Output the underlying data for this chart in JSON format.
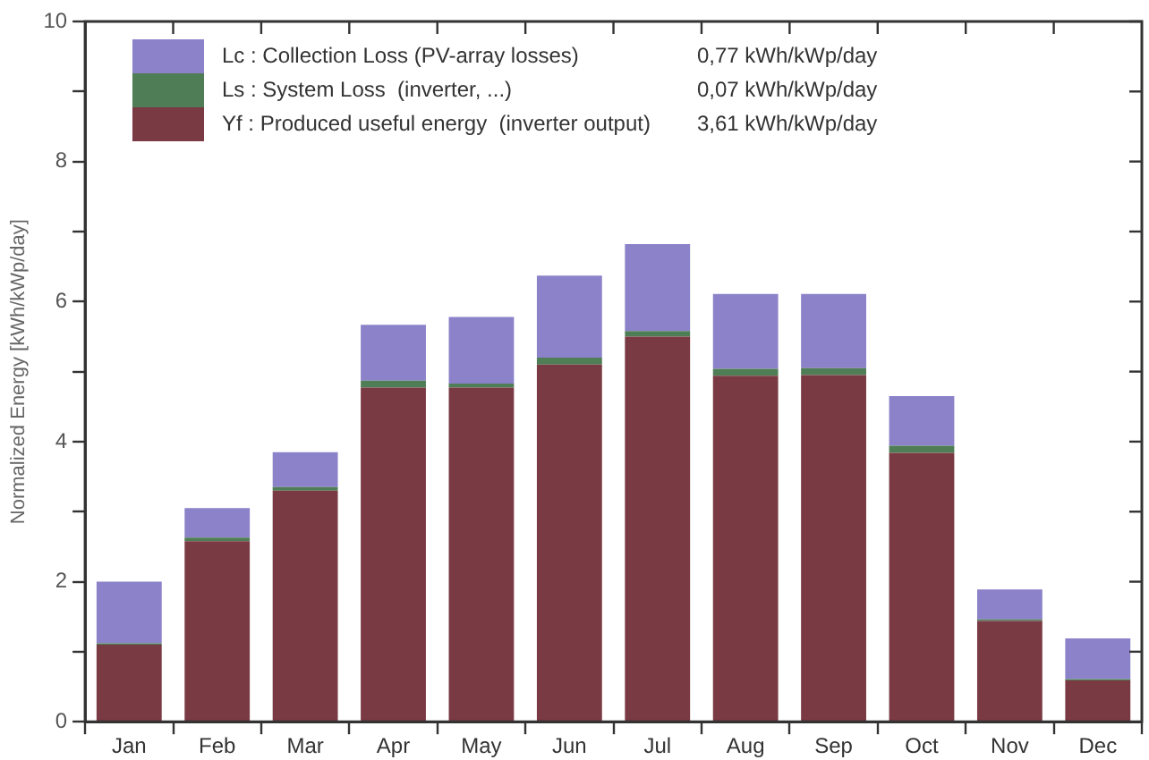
{
  "chart_data": {
    "type": "bar",
    "stacked": true,
    "ylabel": "Normalized Energy [kWh/kWp/day]",
    "categories": [
      "Jan",
      "Feb",
      "Mar",
      "Apr",
      "May",
      "Jun",
      "Jul",
      "Aug",
      "Sep",
      "Oct",
      "Nov",
      "Dec"
    ],
    "series": [
      {
        "name": "Yf : Produced useful energy  (inverter output)",
        "color": "#7a3a44",
        "values": [
          1.1,
          2.58,
          3.3,
          4.77,
          4.77,
          5.1,
          5.5,
          4.94,
          4.95,
          3.84,
          1.44,
          0.59
        ]
      },
      {
        "name": "Ls : System Loss  (inverter, ...)",
        "color": "#4f7d55",
        "values": [
          0.02,
          0.05,
          0.05,
          0.1,
          0.06,
          0.1,
          0.08,
          0.1,
          0.1,
          0.1,
          0.02,
          0.02
        ]
      },
      {
        "name": "Lc : Collection Loss (PV-array losses)",
        "color": "#8b82c9",
        "values": [
          0.88,
          0.42,
          0.5,
          0.8,
          0.95,
          1.17,
          1.24,
          1.07,
          1.06,
          0.71,
          0.43,
          0.58
        ]
      }
    ],
    "annotations": [
      "3,61 kWh/kWp/day",
      "0,07 kWh/kWp/day",
      "0,77 kWh/kWp/day"
    ],
    "ylim": [
      0,
      10
    ],
    "yticks": [
      0,
      {
        "value": 1,
        "label": null
      },
      2,
      {
        "value": 3,
        "label": null
      },
      4,
      {
        "value": 5,
        "label": null
      },
      6,
      {
        "value": 7,
        "label": null
      },
      8,
      {
        "value": 9,
        "label": null
      },
      10
    ],
    "grid": false,
    "legend": "top left"
  }
}
